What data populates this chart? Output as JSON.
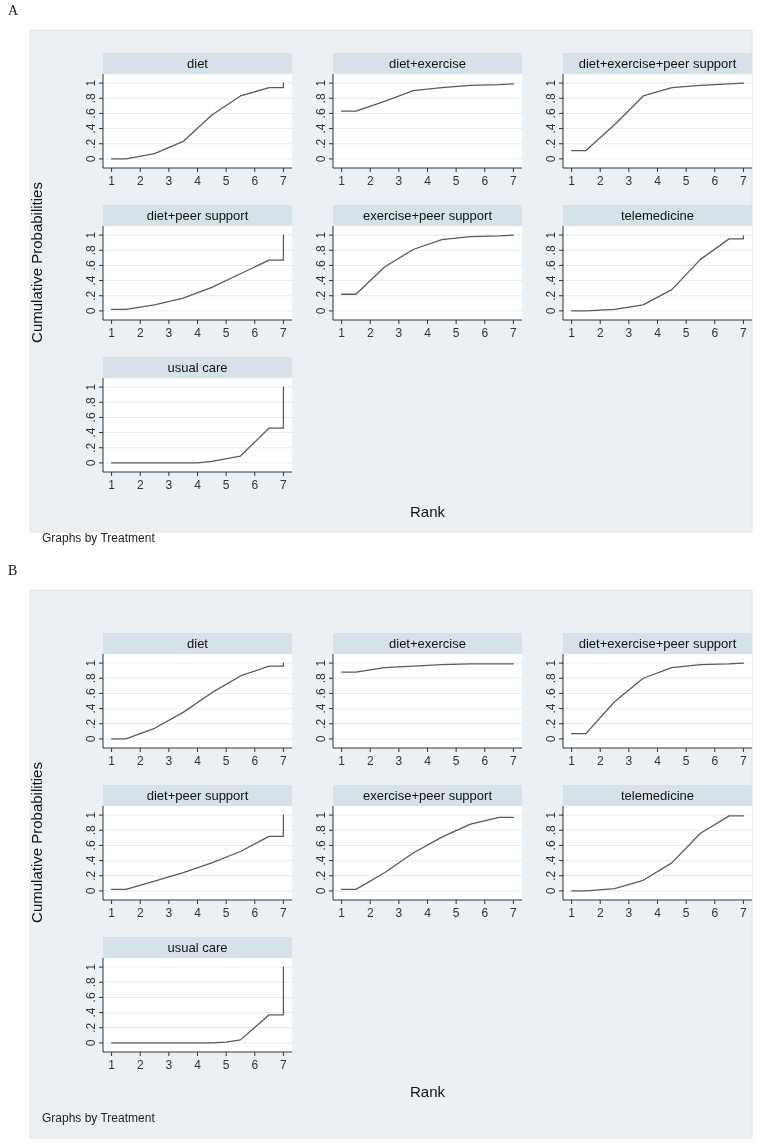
{
  "chart_data": [
    {
      "type": "line",
      "title": "diet",
      "annotations": [
        "A"
      ],
      "x": [
        1,
        1.5,
        2.5,
        3.5,
        4.5,
        5.5,
        6.5,
        7,
        7
      ],
      "values": [
        0,
        0,
        0.07,
        0.23,
        0.58,
        0.83,
        0.94,
        0.94,
        1
      ],
      "color": "#5a5a5a",
      "xlim": [
        0.7,
        7.3
      ],
      "ylim": [
        -0.12,
        1.12
      ],
      "xticks": [
        1,
        2,
        3,
        4,
        5,
        6,
        7
      ],
      "yticks": [
        {
          "value": 0,
          "label": "0"
        },
        {
          "value": 0.2,
          "label": ".2"
        },
        {
          "value": 0.4,
          "label": ".4"
        },
        {
          "value": 0.6,
          "label": ".6"
        },
        {
          "value": 0.8,
          "label": ".8"
        },
        {
          "value": 1,
          "label": "1"
        }
      ],
      "grid": "y"
    },
    {
      "type": "line",
      "title": "diet+exercise",
      "x": [
        1,
        1.5,
        2.5,
        3.5,
        4.5,
        5.5,
        6.5,
        7
      ],
      "values": [
        0.63,
        0.63,
        0.76,
        0.9,
        0.94,
        0.97,
        0.98,
        0.99
      ],
      "color": "#5a5a5a",
      "xlim": [
        0.7,
        7.3
      ],
      "ylim": [
        -0.12,
        1.12
      ],
      "xticks": [
        1,
        2,
        3,
        4,
        5,
        6,
        7
      ],
      "yticks": [
        {
          "value": 0,
          "label": "0"
        },
        {
          "value": 0.2,
          "label": ".2"
        },
        {
          "value": 0.4,
          "label": ".4"
        },
        {
          "value": 0.6,
          "label": ".6"
        },
        {
          "value": 0.8,
          "label": ".8"
        },
        {
          "value": 1,
          "label": "1"
        }
      ],
      "grid": "y"
    },
    {
      "type": "line",
      "title": "diet+exercise+peer support",
      "x": [
        1,
        1.5,
        2.5,
        3.5,
        4.5,
        5.5,
        6.5,
        7
      ],
      "values": [
        0.11,
        0.11,
        0.45,
        0.83,
        0.94,
        0.97,
        0.99,
        1
      ],
      "color": "#5a5a5a",
      "xlim": [
        0.7,
        7.3
      ],
      "ylim": [
        -0.12,
        1.12
      ],
      "xticks": [
        1,
        2,
        3,
        4,
        5,
        6,
        7
      ],
      "yticks": [
        {
          "value": 0,
          "label": "0"
        },
        {
          "value": 0.2,
          "label": ".2"
        },
        {
          "value": 0.4,
          "label": ".4"
        },
        {
          "value": 0.6,
          "label": ".6"
        },
        {
          "value": 0.8,
          "label": ".8"
        },
        {
          "value": 1,
          "label": "1"
        }
      ],
      "grid": "y"
    },
    {
      "type": "line",
      "title": "diet+peer support",
      "ylabel": "Cumulative Probabilities",
      "x": [
        1,
        1.5,
        2.5,
        3.5,
        4.5,
        5.5,
        6.5,
        7,
        7
      ],
      "values": [
        0.02,
        0.02,
        0.08,
        0.17,
        0.31,
        0.49,
        0.67,
        0.67,
        1
      ],
      "color": "#5a5a5a",
      "xlim": [
        0.7,
        7.3
      ],
      "ylim": [
        -0.12,
        1.12
      ],
      "xticks": [
        1,
        2,
        3,
        4,
        5,
        6,
        7
      ],
      "yticks": [
        {
          "value": 0,
          "label": "0"
        },
        {
          "value": 0.2,
          "label": ".2"
        },
        {
          "value": 0.4,
          "label": ".4"
        },
        {
          "value": 0.6,
          "label": ".6"
        },
        {
          "value": 0.8,
          "label": ".8"
        },
        {
          "value": 1,
          "label": "1"
        }
      ],
      "grid": "y"
    },
    {
      "type": "line",
      "title": "exercise+peer support",
      "xlabel": "Rank",
      "x": [
        1,
        1.5,
        2.5,
        3.5,
        4.5,
        5.5,
        6.5,
        7
      ],
      "values": [
        0.22,
        0.22,
        0.58,
        0.81,
        0.94,
        0.98,
        0.99,
        1
      ],
      "color": "#5a5a5a",
      "xlim": [
        0.7,
        7.3
      ],
      "ylim": [
        -0.12,
        1.12
      ],
      "xticks": [
        1,
        2,
        3,
        4,
        5,
        6,
        7
      ],
      "yticks": [
        {
          "value": 0,
          "label": "0"
        },
        {
          "value": 0.2,
          "label": ".2"
        },
        {
          "value": 0.4,
          "label": ".4"
        },
        {
          "value": 0.6,
          "label": ".6"
        },
        {
          "value": 0.8,
          "label": ".8"
        },
        {
          "value": 1,
          "label": "1"
        }
      ],
      "grid": "y"
    },
    {
      "type": "line",
      "title": "telemedicine",
      "x": [
        1,
        1.5,
        2.5,
        3.5,
        4.5,
        5.5,
        6.5,
        7,
        7
      ],
      "values": [
        0,
        0,
        0.02,
        0.08,
        0.28,
        0.68,
        0.95,
        0.95,
        0.99
      ],
      "color": "#5a5a5a",
      "xlim": [
        0.7,
        7.3
      ],
      "ylim": [
        -0.12,
        1.12
      ],
      "xticks": [
        1,
        2,
        3,
        4,
        5,
        6,
        7
      ],
      "yticks": [
        {
          "value": 0,
          "label": "0"
        },
        {
          "value": 0.2,
          "label": ".2"
        },
        {
          "value": 0.4,
          "label": ".4"
        },
        {
          "value": 0.6,
          "label": ".6"
        },
        {
          "value": 0.8,
          "label": ".8"
        },
        {
          "value": 1,
          "label": "1"
        }
      ],
      "grid": "y"
    },
    {
      "type": "line",
      "title": "usual care",
      "annotations": [
        "Graphs by Treatment"
      ],
      "x": [
        1,
        2,
        3,
        4,
        4.5,
        5.5,
        6.5,
        7,
        7
      ],
      "values": [
        0,
        0,
        0,
        0,
        0.02,
        0.09,
        0.46,
        0.46,
        1
      ],
      "color": "#5a5a5a",
      "xlim": [
        0.7,
        7.3
      ],
      "ylim": [
        -0.12,
        1.12
      ],
      "xticks": [
        1,
        2,
        3,
        4,
        5,
        6,
        7
      ],
      "yticks": [
        {
          "value": 0,
          "label": "0"
        },
        {
          "value": 0.2,
          "label": ".2"
        },
        {
          "value": 0.4,
          "label": ".4"
        },
        {
          "value": 0.6,
          "label": ".6"
        },
        {
          "value": 0.8,
          "label": ".8"
        },
        {
          "value": 1,
          "label": "1"
        }
      ],
      "grid": "y"
    },
    {
      "type": "line",
      "title": "diet",
      "annotations": [
        "B"
      ],
      "x": [
        1,
        1.5,
        2.5,
        3.5,
        4.5,
        5.5,
        6.5,
        7,
        7
      ],
      "values": [
        0,
        0,
        0.14,
        0.35,
        0.61,
        0.83,
        0.96,
        0.96,
        1
      ],
      "color": "#5a5a5a",
      "xlim": [
        0.7,
        7.3
      ],
      "ylim": [
        -0.12,
        1.12
      ],
      "xticks": [
        1,
        2,
        3,
        4,
        5,
        6,
        7
      ],
      "yticks": [
        {
          "value": 0,
          "label": "0"
        },
        {
          "value": 0.2,
          "label": ".2"
        },
        {
          "value": 0.4,
          "label": ".4"
        },
        {
          "value": 0.6,
          "label": ".6"
        },
        {
          "value": 0.8,
          "label": ".8"
        },
        {
          "value": 1,
          "label": "1"
        }
      ],
      "grid": "y"
    },
    {
      "type": "line",
      "title": "diet+exercise",
      "x": [
        1,
        1.5,
        2.5,
        3.5,
        4.5,
        5.5,
        6.5,
        7
      ],
      "values": [
        0.88,
        0.88,
        0.94,
        0.96,
        0.98,
        0.99,
        0.99,
        0.99
      ],
      "color": "#5a5a5a",
      "xlim": [
        0.7,
        7.3
      ],
      "ylim": [
        -0.12,
        1.12
      ],
      "xticks": [
        1,
        2,
        3,
        4,
        5,
        6,
        7
      ],
      "yticks": [
        {
          "value": 0,
          "label": "0"
        },
        {
          "value": 0.2,
          "label": ".2"
        },
        {
          "value": 0.4,
          "label": ".4"
        },
        {
          "value": 0.6,
          "label": ".6"
        },
        {
          "value": 0.8,
          "label": ".8"
        },
        {
          "value": 1,
          "label": "1"
        }
      ],
      "grid": "y"
    },
    {
      "type": "line",
      "title": "diet+exercise+peer support",
      "x": [
        1,
        1.5,
        2.5,
        3.5,
        4.5,
        5.5,
        6.5,
        7
      ],
      "values": [
        0.07,
        0.07,
        0.49,
        0.8,
        0.94,
        0.98,
        0.99,
        1
      ],
      "color": "#5a5a5a",
      "xlim": [
        0.7,
        7.3
      ],
      "ylim": [
        -0.12,
        1.12
      ],
      "xticks": [
        1,
        2,
        3,
        4,
        5,
        6,
        7
      ],
      "yticks": [
        {
          "value": 0,
          "label": "0"
        },
        {
          "value": 0.2,
          "label": ".2"
        },
        {
          "value": 0.4,
          "label": ".4"
        },
        {
          "value": 0.6,
          "label": ".6"
        },
        {
          "value": 0.8,
          "label": ".8"
        },
        {
          "value": 1,
          "label": "1"
        }
      ],
      "grid": "y"
    },
    {
      "type": "line",
      "title": "diet+peer support",
      "ylabel": "Cumulative Probabilities",
      "x": [
        1,
        1.5,
        2.5,
        3.5,
        4.5,
        5.5,
        6.5,
        7,
        7
      ],
      "values": [
        0.02,
        0.02,
        0.13,
        0.24,
        0.37,
        0.52,
        0.72,
        0.72,
        1
      ],
      "color": "#5a5a5a",
      "xlim": [
        0.7,
        7.3
      ],
      "ylim": [
        -0.12,
        1.12
      ],
      "xticks": [
        1,
        2,
        3,
        4,
        5,
        6,
        7
      ],
      "yticks": [
        {
          "value": 0,
          "label": "0"
        },
        {
          "value": 0.2,
          "label": ".2"
        },
        {
          "value": 0.4,
          "label": ".4"
        },
        {
          "value": 0.6,
          "label": ".6"
        },
        {
          "value": 0.8,
          "label": ".8"
        },
        {
          "value": 1,
          "label": "1"
        }
      ],
      "grid": "y"
    },
    {
      "type": "line",
      "title": "exercise+peer support",
      "xlabel": "Rank",
      "x": [
        1,
        1.5,
        2.5,
        3.5,
        4.5,
        5.5,
        6.5,
        7
      ],
      "values": [
        0.02,
        0.02,
        0.24,
        0.5,
        0.71,
        0.88,
        0.97,
        0.97
      ],
      "color": "#5a5a5a",
      "xlim": [
        0.7,
        7.3
      ],
      "ylim": [
        -0.12,
        1.12
      ],
      "xticks": [
        1,
        2,
        3,
        4,
        5,
        6,
        7
      ],
      "yticks": [
        {
          "value": 0,
          "label": "0"
        },
        {
          "value": 0.2,
          "label": ".2"
        },
        {
          "value": 0.4,
          "label": ".4"
        },
        {
          "value": 0.6,
          "label": ".6"
        },
        {
          "value": 0.8,
          "label": ".8"
        },
        {
          "value": 1,
          "label": "1"
        }
      ],
      "grid": "y"
    },
    {
      "type": "line",
      "title": "telemedicine",
      "x": [
        1,
        1.5,
        2.5,
        3.5,
        4.5,
        5.5,
        6.5,
        7
      ],
      "values": [
        0,
        0,
        0.03,
        0.14,
        0.37,
        0.76,
        0.99,
        0.99
      ],
      "color": "#5a5a5a",
      "xlim": [
        0.7,
        7.3
      ],
      "ylim": [
        -0.12,
        1.12
      ],
      "xticks": [
        1,
        2,
        3,
        4,
        5,
        6,
        7
      ],
      "yticks": [
        {
          "value": 0,
          "label": "0"
        },
        {
          "value": 0.2,
          "label": ".2"
        },
        {
          "value": 0.4,
          "label": ".4"
        },
        {
          "value": 0.6,
          "label": ".6"
        },
        {
          "value": 0.8,
          "label": ".8"
        },
        {
          "value": 1,
          "label": "1"
        }
      ],
      "grid": "y"
    },
    {
      "type": "line",
      "title": "usual care",
      "annotations": [
        "Graphs by Treatment"
      ],
      "x": [
        1,
        2,
        3,
        4,
        4.5,
        5,
        5.5,
        6.5,
        7,
        7
      ],
      "values": [
        0,
        0,
        0,
        0,
        0,
        0.01,
        0.04,
        0.37,
        0.37,
        1
      ],
      "color": "#5a5a5a",
      "xlim": [
        0.7,
        7.3
      ],
      "ylim": [
        -0.12,
        1.12
      ],
      "xticks": [
        1,
        2,
        3,
        4,
        5,
        6,
        7
      ],
      "yticks": [
        {
          "value": 0,
          "label": "0"
        },
        {
          "value": 0.2,
          "label": ".2"
        },
        {
          "value": 0.4,
          "label": ".4"
        },
        {
          "value": 0.6,
          "label": ".6"
        },
        {
          "value": 0.8,
          "label": ".8"
        },
        {
          "value": 1,
          "label": "1"
        }
      ],
      "grid": "y"
    }
  ]
}
